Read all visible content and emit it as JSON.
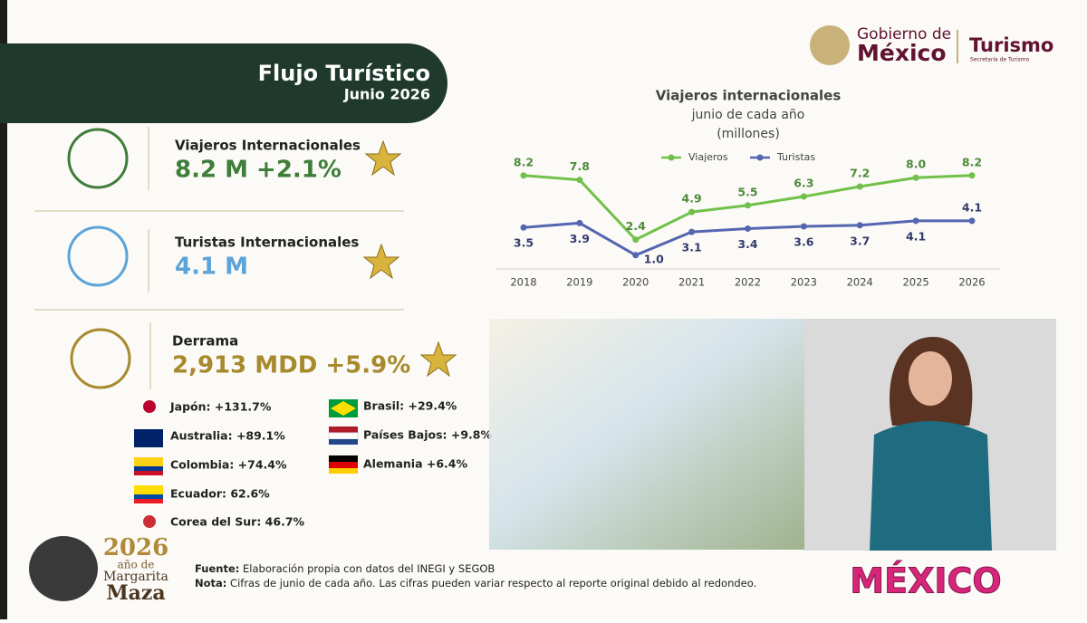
{
  "header": {
    "title": "Flujo Turístico",
    "subtitle": "Junio 2026"
  },
  "logo": {
    "line1": "Gobierno de",
    "line2": "México",
    "agency": "Turismo",
    "agency_sub": "Secretaría de Turismo"
  },
  "indicators": [
    {
      "label": "Viajeros Internacionales",
      "value": "8.2 M +2.1%"
    },
    {
      "label": "Turistas Internacionales",
      "value": "4.1 M"
    },
    {
      "label": "Derrama",
      "value": "2,913 MDD +5.9%"
    }
  ],
  "countries": [
    "Japón: +131.7%",
    "Australia: +89.1%",
    "Colombia: +74.4%",
    "Ecuador: 62.6%",
    "Corea del Sur: 46.7%",
    "Brasil: +29.4%",
    "Países Bajos: +9.8%",
    "Alemania +6.4%"
  ],
  "line_chart": {
    "type": "line",
    "title": "Viajeros internacionales",
    "subtitle": "junio de cada año",
    "unit": "(millones)",
    "categories": [
      "2018",
      "2019",
      "2020",
      "2021",
      "2022",
      "2023",
      "2024",
      "2025",
      "2026"
    ],
    "ylim": [
      0,
      9
    ],
    "series": [
      {
        "name": "Viajeros",
        "color": "#72c04a",
        "values": [
          8.2,
          7.8,
          2.4,
          4.9,
          5.5,
          6.3,
          7.2,
          8.0,
          8.2
        ],
        "value_labels": [
          "8.2",
          "7.8",
          "2.4",
          "4.9",
          "5.5",
          "6.3",
          "7.2",
          "8.0",
          "8.2"
        ]
      },
      {
        "name": "Turistas",
        "color": "#5566b0",
        "values": [
          3.5,
          3.9,
          1.0,
          3.1,
          3.4,
          3.6,
          3.7,
          4.1,
          4.1
        ],
        "value_labels": [
          "3.5",
          "3.9",
          "1.0",
          "3.1",
          "3.4",
          "3.6",
          "3.7",
          "4.1",
          "4.1"
        ]
      }
    ]
  },
  "footer": {
    "source_label": "Fuente:",
    "source": "Elaboración propia con datos del INEGI y SEGOB",
    "note_label": "Nota:",
    "note": "Cifras de junio de cada año. Las cifras pueden variar respecto al reporte original debido al redondeo."
  },
  "badge": {
    "year": "2026",
    "line1": "año de",
    "line2": "Margarita",
    "line3": "Maza"
  },
  "brand": "MÉXICO"
}
